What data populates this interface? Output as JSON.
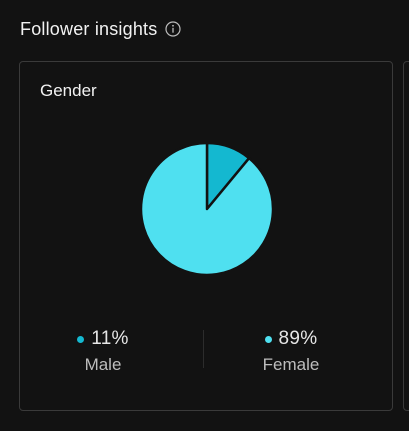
{
  "section": {
    "title": "Follower insights",
    "info_icon": "info-icon"
  },
  "card": {
    "title": "Gender"
  },
  "chart_data": {
    "type": "pie",
    "title": "Gender",
    "categories": [
      "Male",
      "Female"
    ],
    "values": [
      11,
      89
    ],
    "colors": [
      "#14b8d0",
      "#4fe0f0"
    ]
  },
  "stats": {
    "male": {
      "value": "11%",
      "label": "Male",
      "color": "#14b8d0"
    },
    "female": {
      "value": "89%",
      "label": "Female",
      "color": "#4fe0f0"
    }
  },
  "colors": {
    "background": "#121212",
    "border": "#3a3a3a"
  }
}
